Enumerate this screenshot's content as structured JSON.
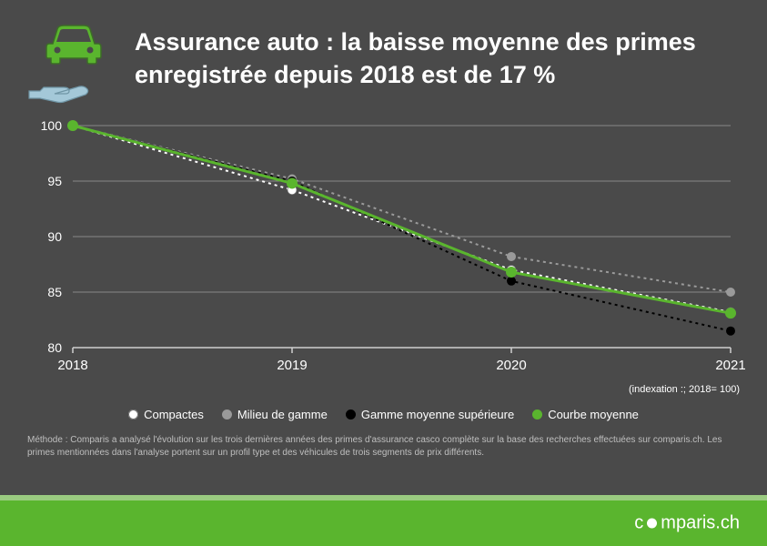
{
  "title": "Assurance auto : la baisse moyenne des primes enregistrée depuis 2018 est de 17 %",
  "index_note": "(indexation :; 2018= 100)",
  "method_note": "Méthode : Comparis a analysé l'évolution sur les trois dernières années des primes d'assurance casco complète sur la base des recherches effectuées sur comparis.ch. Les primes mentionnées dans l'analyse portent sur un profil type et des véhicules de trois segments de prix différents.",
  "footer_brand_left": "c",
  "footer_brand_right": "mparis.ch",
  "chart": {
    "type": "line",
    "background_color": "#4a4a4a",
    "grid_color": "#888888",
    "axis_color": "#d0d0d0",
    "years": [
      "2018",
      "2019",
      "2020",
      "2021"
    ],
    "ylim": [
      80,
      100
    ],
    "ytick_step": 5,
    "yticks": [
      80,
      85,
      90,
      95,
      100
    ],
    "tick_fontsize": 14,
    "tick_color": "#ffffff",
    "series": [
      {
        "key": "compactes",
        "label": "Compactes",
        "values": [
          100,
          94.2,
          87,
          83.2
        ],
        "color": "#ffffff",
        "dash": "3,4",
        "line_width": 2,
        "marker_size": 5
      },
      {
        "key": "milieu",
        "label": "Milieu de gamme",
        "values": [
          100,
          95.2,
          88.2,
          85
        ],
        "color": "#9a9a9a",
        "dash": "3,4",
        "line_width": 2,
        "marker_size": 5
      },
      {
        "key": "superieure",
        "label": "Gamme moyenne supérieure",
        "values": [
          100,
          95,
          86,
          81.5
        ],
        "color": "#000000",
        "dash": "3,4",
        "line_width": 2,
        "marker_size": 5
      },
      {
        "key": "moyenne",
        "label": "Courbe moyenne",
        "values": [
          100,
          94.8,
          86.8,
          83.1
        ],
        "color": "#5ab52e",
        "dash": "",
        "line_width": 3,
        "marker_size": 6
      }
    ]
  },
  "colors": {
    "brand_green": "#5ab52e",
    "brand_green_light": "#9acb80",
    "bg": "#4a4a4a",
    "text": "#ffffff",
    "muted_text": "#bfbfbf",
    "icon_outline": "#3d6b28"
  },
  "icon_car_color": "#5ab52e",
  "icon_hand_color": "#a4c8d8"
}
